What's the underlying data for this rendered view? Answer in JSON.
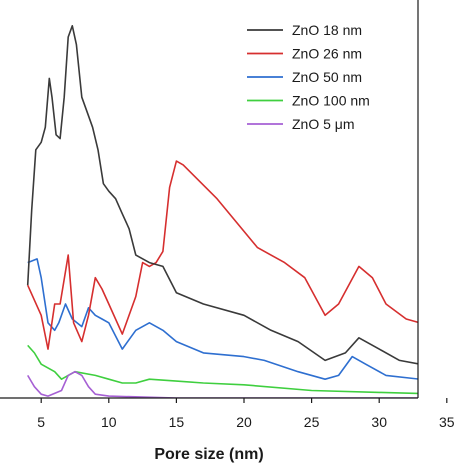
{
  "chart_data": {
    "type": "line",
    "title": "",
    "xlabel": "Pore size (nm)",
    "ylabel": "",
    "xlim": [
      4,
      35
    ],
    "ylim": [
      0,
      100
    ],
    "x_ticks": [
      5,
      10,
      15,
      20,
      25,
      30,
      35
    ],
    "x_tick_labels": [
      "5",
      "10",
      "15",
      "20",
      "25",
      "30",
      "35"
    ],
    "grid": false,
    "legend_position": "top-right",
    "series": [
      {
        "name": "ZnO 18 nm",
        "color": "#3a3a3a",
        "points": [
          [
            4.0,
            30
          ],
          [
            4.3,
            50
          ],
          [
            4.6,
            66
          ],
          [
            5.0,
            68
          ],
          [
            5.3,
            72
          ],
          [
            5.6,
            85
          ],
          [
            5.8,
            80
          ],
          [
            6.1,
            70
          ],
          [
            6.4,
            69
          ],
          [
            6.7,
            80
          ],
          [
            7.0,
            96
          ],
          [
            7.3,
            99
          ],
          [
            7.6,
            94
          ],
          [
            8.0,
            80
          ],
          [
            8.4,
            76
          ],
          [
            8.8,
            72
          ],
          [
            9.2,
            66
          ],
          [
            9.6,
            57
          ],
          [
            10.0,
            55
          ],
          [
            10.5,
            53
          ],
          [
            11.0,
            49
          ],
          [
            11.5,
            45
          ],
          [
            12.0,
            38
          ],
          [
            13.0,
            36
          ],
          [
            14.0,
            35
          ],
          [
            15.0,
            28
          ],
          [
            17.0,
            25
          ],
          [
            20.0,
            22
          ],
          [
            22.0,
            18
          ],
          [
            24.0,
            15
          ],
          [
            26.0,
            10
          ],
          [
            27.5,
            12
          ],
          [
            28.5,
            16
          ],
          [
            30.0,
            13
          ],
          [
            31.5,
            10
          ],
          [
            33.0,
            9
          ],
          [
            35.0,
            10
          ]
        ]
      },
      {
        "name": "ZnO 26 nm",
        "color": "#d62f2f",
        "points": [
          [
            4.0,
            30
          ],
          [
            5.0,
            22
          ],
          [
            5.5,
            13
          ],
          [
            6.0,
            25
          ],
          [
            6.4,
            25
          ],
          [
            7.0,
            38
          ],
          [
            7.4,
            20
          ],
          [
            8.0,
            15
          ],
          [
            8.5,
            22
          ],
          [
            9.0,
            32
          ],
          [
            9.5,
            29
          ],
          [
            10.0,
            25
          ],
          [
            11.0,
            17
          ],
          [
            12.0,
            27
          ],
          [
            12.5,
            36
          ],
          [
            13.0,
            35
          ],
          [
            13.5,
            36
          ],
          [
            14.0,
            39
          ],
          [
            14.5,
            56
          ],
          [
            15.0,
            63
          ],
          [
            15.5,
            62
          ],
          [
            18.0,
            53
          ],
          [
            21.0,
            40
          ],
          [
            23.0,
            36
          ],
          [
            24.5,
            32
          ],
          [
            26.0,
            22
          ],
          [
            27.0,
            25
          ],
          [
            28.5,
            35
          ],
          [
            29.5,
            32
          ],
          [
            30.5,
            25
          ],
          [
            32.0,
            21
          ],
          [
            33.0,
            20
          ],
          [
            34.5,
            20
          ],
          [
            35.0,
            25
          ]
        ]
      },
      {
        "name": "ZnO 50 nm",
        "color": "#2e6fd0",
        "points": [
          [
            4.0,
            36
          ],
          [
            4.7,
            37
          ],
          [
            5.0,
            32
          ],
          [
            5.5,
            20
          ],
          [
            6.0,
            18
          ],
          [
            6.3,
            20
          ],
          [
            6.8,
            25
          ],
          [
            7.3,
            21
          ],
          [
            8.0,
            19
          ],
          [
            8.5,
            24
          ],
          [
            9.0,
            22
          ],
          [
            9.5,
            21
          ],
          [
            10.0,
            20
          ],
          [
            11.0,
            13
          ],
          [
            12.0,
            18
          ],
          [
            13.0,
            20
          ],
          [
            14.0,
            18
          ],
          [
            15.0,
            15
          ],
          [
            17.0,
            12
          ],
          [
            20.0,
            11
          ],
          [
            21.5,
            10
          ],
          [
            24.0,
            7
          ],
          [
            26.0,
            5
          ],
          [
            27.0,
            6
          ],
          [
            28.0,
            11
          ],
          [
            29.0,
            9
          ],
          [
            30.5,
            6
          ],
          [
            33.0,
            5
          ],
          [
            35.0,
            6
          ]
        ]
      },
      {
        "name": "ZnO 100 nm",
        "color": "#3fcf3f",
        "points": [
          [
            4.0,
            14
          ],
          [
            4.5,
            12
          ],
          [
            5.0,
            9
          ],
          [
            6.0,
            7
          ],
          [
            6.5,
            5
          ],
          [
            7.0,
            6
          ],
          [
            7.5,
            7
          ],
          [
            9.0,
            6
          ],
          [
            10.0,
            5
          ],
          [
            11.0,
            4
          ],
          [
            12.0,
            4
          ],
          [
            13.0,
            5
          ],
          [
            15.0,
            4.5
          ],
          [
            17.0,
            4
          ],
          [
            20.0,
            3.5
          ],
          [
            25.0,
            2
          ],
          [
            30.0,
            1.5
          ],
          [
            35.0,
            1
          ]
        ]
      },
      {
        "name": "ZnO 5 μm",
        "color": "#a660d4",
        "points": [
          [
            4.0,
            6
          ],
          [
            4.5,
            3
          ],
          [
            5.0,
            1
          ],
          [
            5.5,
            0.5
          ],
          [
            6.5,
            2
          ],
          [
            7.0,
            6
          ],
          [
            7.5,
            7
          ],
          [
            8.0,
            6
          ],
          [
            8.5,
            3
          ],
          [
            9.0,
            1
          ],
          [
            10.0,
            0.5
          ],
          [
            15.0,
            0
          ],
          [
            20.0,
            0
          ],
          [
            25.0,
            0
          ],
          [
            30.0,
            0
          ],
          [
            35.0,
            0
          ]
        ]
      }
    ]
  }
}
